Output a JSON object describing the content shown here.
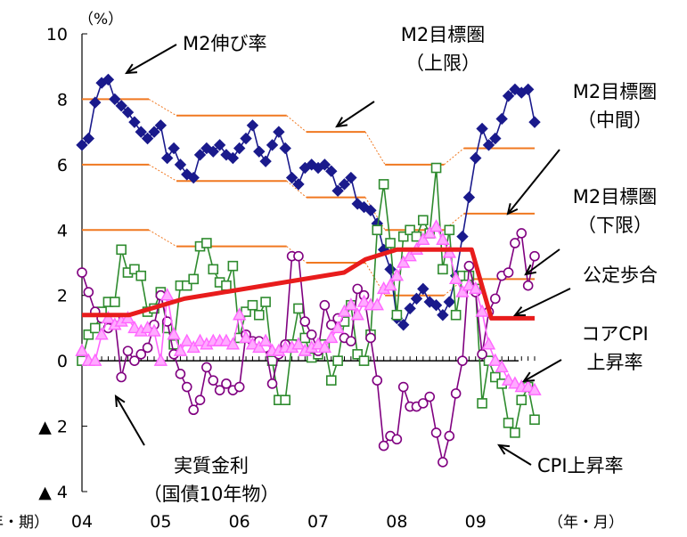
{
  "chart_data": {
    "type": "line",
    "y_unit": "（%）",
    "x_unit_left": "（年・期）",
    "x_unit_right": "（年・月）",
    "xlabel": "",
    "ylabel": "",
    "xlim": [
      2004.0,
      2010.3
    ],
    "ylim": [
      -4,
      10
    ],
    "x_tick_labels": [
      "04",
      "05",
      "06",
      "07",
      "08",
      "09"
    ],
    "x_tick_values": [
      2004,
      2005,
      2006,
      2007,
      2008,
      2009
    ],
    "y_tick_labels": [
      "10",
      "8",
      "6",
      "4",
      "2",
      "0",
      "▲ 2",
      "▲ 4"
    ],
    "y_tick_values": [
      10,
      8,
      6,
      4,
      2,
      0,
      -2,
      -4
    ],
    "grid": false,
    "legend": "none (annotations with arrows)",
    "series": [
      {
        "name": "M2伸び率",
        "style": "line-marker",
        "marker": "diamond",
        "color": "#1a1a8c",
        "x": [
          2004.0,
          2004.083,
          2004.167,
          2004.25,
          2004.333,
          2004.417,
          2004.5,
          2004.583,
          2004.667,
          2004.75,
          2004.833,
          2004.917,
          2005.0,
          2005.083,
          2005.167,
          2005.25,
          2005.333,
          2005.417,
          2005.5,
          2005.583,
          2005.667,
          2005.75,
          2005.833,
          2005.917,
          2006.0,
          2006.083,
          2006.167,
          2006.25,
          2006.333,
          2006.417,
          2006.5,
          2006.583,
          2006.667,
          2006.75,
          2006.833,
          2006.917,
          2007.0,
          2007.083,
          2007.167,
          2007.25,
          2007.333,
          2007.417,
          2007.5,
          2007.583,
          2007.667,
          2007.75,
          2007.833,
          2007.917,
          2008.0,
          2008.083,
          2008.167,
          2008.25,
          2008.333,
          2008.417,
          2008.5,
          2008.583,
          2008.667,
          2008.75,
          2008.833,
          2008.917,
          2009.0,
          2009.083,
          2009.167,
          2009.25,
          2009.333,
          2009.417,
          2009.5,
          2009.583,
          2009.667,
          2009.75
        ],
        "y": [
          6.6,
          6.8,
          7.9,
          8.5,
          8.6,
          8.0,
          7.8,
          7.6,
          7.3,
          7.0,
          6.8,
          7.0,
          7.2,
          6.2,
          6.5,
          6.0,
          5.7,
          5.6,
          6.3,
          6.5,
          6.4,
          6.6,
          6.3,
          6.2,
          6.5,
          6.8,
          7.2,
          6.4,
          6.1,
          6.6,
          7.0,
          6.5,
          5.6,
          5.4,
          5.9,
          6.0,
          5.9,
          6.0,
          5.8,
          5.2,
          5.4,
          5.6,
          4.8,
          4.7,
          4.6,
          4.2,
          3.4,
          2.8,
          1.3,
          1.1,
          1.6,
          1.9,
          2.2,
          1.8,
          1.7,
          1.4,
          1.8,
          2.6,
          3.8,
          5.0,
          6.2,
          7.1,
          6.6,
          6.8,
          7.4,
          8.1,
          8.3,
          8.2,
          8.3,
          7.3
        ]
      },
      {
        "name": "CPI上昇率",
        "style": "line-marker",
        "marker": "square",
        "color": "#2e8b2e",
        "x": [
          2004.0,
          2004.083,
          2004.167,
          2004.25,
          2004.333,
          2004.417,
          2004.5,
          2004.583,
          2004.667,
          2004.75,
          2004.833,
          2004.917,
          2005.0,
          2005.083,
          2005.167,
          2005.25,
          2005.333,
          2005.417,
          2005.5,
          2005.583,
          2005.667,
          2005.75,
          2005.833,
          2005.917,
          2006.0,
          2006.083,
          2006.167,
          2006.25,
          2006.333,
          2006.417,
          2006.5,
          2006.583,
          2006.667,
          2006.75,
          2006.833,
          2006.917,
          2007.0,
          2007.083,
          2007.167,
          2007.25,
          2007.333,
          2007.417,
          2007.5,
          2007.583,
          2007.667,
          2007.75,
          2007.833,
          2007.917,
          2008.0,
          2008.083,
          2008.167,
          2008.25,
          2008.333,
          2008.417,
          2008.5,
          2008.583,
          2008.667,
          2008.75,
          2008.833,
          2008.917,
          2009.0,
          2009.083,
          2009.167,
          2009.25,
          2009.333,
          2009.417,
          2009.5,
          2009.583,
          2009.667,
          2009.75
        ],
        "y": [
          0.0,
          0.8,
          1.0,
          1.5,
          1.8,
          1.8,
          3.4,
          2.7,
          2.8,
          2.6,
          1.5,
          1.6,
          2.1,
          1.0,
          0.5,
          2.3,
          2.3,
          2.5,
          3.5,
          3.6,
          2.8,
          2.4,
          2.3,
          2.9,
          0.7,
          1.5,
          1.7,
          1.4,
          1.8,
          0.0,
          -1.2,
          -1.2,
          0.5,
          1.6,
          0.7,
          0.1,
          0.2,
          0.5,
          -0.6,
          0.0,
          1.2,
          1.7,
          0.2,
          0.0,
          0.8,
          4.0,
          5.4,
          3.6,
          1.4,
          3.8,
          4.0,
          3.8,
          4.3,
          3.9,
          5.9,
          2.8,
          4.0,
          1.4,
          2.6,
          2.6,
          2.2,
          -1.3,
          0.0,
          -0.5,
          -0.7,
          -1.9,
          -2.2,
          -1.2,
          -0.8,
          -1.8
        ]
      },
      {
        "name": "実質金利（国債10年物）",
        "style": "line-marker",
        "marker": "circle",
        "color": "#800080",
        "x": [
          2004.0,
          2004.083,
          2004.167,
          2004.25,
          2004.333,
          2004.417,
          2004.5,
          2004.583,
          2004.667,
          2004.75,
          2004.833,
          2004.917,
          2005.0,
          2005.083,
          2005.167,
          2005.25,
          2005.333,
          2005.417,
          2005.5,
          2005.583,
          2005.667,
          2005.75,
          2005.833,
          2005.917,
          2006.0,
          2006.083,
          2006.167,
          2006.25,
          2006.333,
          2006.417,
          2006.5,
          2006.583,
          2006.667,
          2006.75,
          2006.833,
          2006.917,
          2007.0,
          2007.083,
          2007.167,
          2007.25,
          2007.333,
          2007.417,
          2007.5,
          2007.583,
          2007.667,
          2007.75,
          2007.833,
          2007.917,
          2008.0,
          2008.083,
          2008.167,
          2008.25,
          2008.333,
          2008.417,
          2008.5,
          2008.583,
          2008.667,
          2008.75,
          2008.833,
          2008.917,
          2009.0,
          2009.083,
          2009.167,
          2009.25,
          2009.333,
          2009.417,
          2009.5,
          2009.583,
          2009.667,
          2009.75
        ],
        "y": [
          2.7,
          2.1,
          1.5,
          1.3,
          1.0,
          1.3,
          -0.5,
          0.3,
          0.0,
          0.2,
          0.4,
          1.1,
          2.0,
          1.2,
          0.2,
          -0.4,
          -0.8,
          -1.5,
          -1.2,
          -0.2,
          -0.6,
          -0.9,
          -0.7,
          -0.9,
          -0.8,
          0.8,
          0.6,
          0.6,
          0.4,
          -0.7,
          0.2,
          0.5,
          3.2,
          3.2,
          1.2,
          0.8,
          0.3,
          1.7,
          1.1,
          1.3,
          0.7,
          0.6,
          2.2,
          2.0,
          0.7,
          -0.6,
          -2.6,
          -2.3,
          -2.4,
          -0.8,
          -1.4,
          -1.4,
          -1.3,
          -1.1,
          -2.2,
          -3.1,
          -2.3,
          -1.0,
          0.0,
          2.9,
          2.1,
          0.2,
          1.5,
          1.9,
          2.6,
          2.7,
          3.6,
          3.9,
          2.3,
          3.2
        ]
      },
      {
        "name": "コアCPI上昇率",
        "style": "line-marker",
        "marker": "triangle",
        "color": "#ff66ff",
        "x": [
          2004.0,
          2004.083,
          2004.167,
          2004.25,
          2004.333,
          2004.417,
          2004.5,
          2004.583,
          2004.667,
          2004.75,
          2004.833,
          2004.917,
          2005.0,
          2005.083,
          2005.167,
          2005.25,
          2005.333,
          2005.417,
          2005.5,
          2005.583,
          2005.667,
          2005.75,
          2005.833,
          2005.917,
          2006.0,
          2006.083,
          2006.167,
          2006.25,
          2006.333,
          2006.417,
          2006.5,
          2006.583,
          2006.667,
          2006.75,
          2006.833,
          2006.917,
          2007.0,
          2007.083,
          2007.167,
          2007.25,
          2007.333,
          2007.417,
          2007.5,
          2007.583,
          2007.667,
          2007.75,
          2007.833,
          2007.917,
          2008.0,
          2008.083,
          2008.167,
          2008.25,
          2008.333,
          2008.417,
          2008.5,
          2008.583,
          2008.667,
          2008.75,
          2008.833,
          2008.917,
          2009.0,
          2009.083,
          2009.167,
          2009.25,
          2009.333,
          2009.417,
          2009.5,
          2009.583,
          2009.667,
          2009.75
        ],
        "y": [
          0.3,
          0.0,
          0.0,
          0.8,
          1.3,
          1.1,
          1.2,
          1.3,
          1.0,
          0.9,
          1.0,
          0.9,
          0.0,
          2.0,
          0.8,
          0.3,
          0.6,
          0.4,
          0.6,
          0.5,
          0.6,
          0.6,
          0.6,
          0.5,
          1.4,
          0.7,
          0.5,
          0.4,
          0.6,
          0.3,
          0.3,
          0.4,
          0.4,
          0.5,
          0.3,
          0.4,
          0.5,
          0.4,
          0.7,
          1.0,
          1.5,
          1.7,
          1.4,
          1.8,
          1.7,
          1.7,
          2.2,
          2.3,
          2.6,
          3.0,
          3.2,
          3.4,
          3.7,
          3.9,
          4.1,
          3.7,
          3.3,
          2.5,
          2.1,
          2.3,
          2.2,
          1.5,
          0.5,
          0.0,
          -0.2,
          -0.6,
          -0.7,
          -0.8,
          -0.8,
          -0.9
        ]
      },
      {
        "name": "公定歩合",
        "style": "step",
        "color": "#e81c1c",
        "x": [
          2004.0,
          2004.6,
          2005.3,
          2007.33,
          2007.6,
          2008.0,
          2008.95,
          2009.2,
          2009.75
        ],
        "y": [
          1.4,
          1.4,
          1.9,
          2.7,
          3.1,
          3.4,
          3.4,
          1.3,
          1.3
        ]
      },
      {
        "name": "M2目標圏（上限）",
        "style": "step-band",
        "color": "#f07820",
        "segments": [
          [
            2004.0,
            2004.85,
            8.0
          ],
          [
            2005.2,
            2006.6,
            7.5
          ],
          [
            2006.85,
            2007.6,
            7.0
          ],
          [
            2007.85,
            2008.6,
            6.0
          ],
          [
            2008.85,
            2009.75,
            6.5
          ]
        ]
      },
      {
        "name": "M2目標圏（中間）",
        "style": "step-band",
        "color": "#f07820",
        "segments": [
          [
            2004.0,
            2004.85,
            6.0
          ],
          [
            2005.2,
            2006.6,
            5.5
          ],
          [
            2006.85,
            2007.6,
            5.0
          ],
          [
            2007.85,
            2008.6,
            4.0
          ],
          [
            2008.85,
            2009.75,
            4.5
          ]
        ]
      },
      {
        "name": "M2目標圏（下限）",
        "style": "step-band",
        "color": "#f07820",
        "segments": [
          [
            2004.0,
            2004.85,
            4.0
          ],
          [
            2005.2,
            2006.6,
            3.5
          ],
          [
            2006.85,
            2007.6,
            3.0
          ],
          [
            2007.85,
            2008.6,
            2.0
          ],
          [
            2008.85,
            2009.75,
            2.5
          ]
        ]
      }
    ],
    "annotations": [
      {
        "id": "m2-growth",
        "lines": [
          "M2伸び率"
        ]
      },
      {
        "id": "m2-upper",
        "lines": [
          "M2目標圏",
          "（上限）"
        ]
      },
      {
        "id": "m2-middle",
        "lines": [
          "M2目標圏",
          "（中間）"
        ]
      },
      {
        "id": "m2-lower",
        "lines": [
          "M2目標圏",
          "（下限）"
        ]
      },
      {
        "id": "discount-rate",
        "lines": [
          "公定歩合"
        ]
      },
      {
        "id": "core-cpi",
        "lines": [
          "コアCPI",
          "上昇率"
        ]
      },
      {
        "id": "cpi",
        "lines": [
          "CPI上昇率"
        ]
      },
      {
        "id": "real-rate",
        "lines": [
          "実質金利",
          "（国債10年物）"
        ]
      }
    ]
  }
}
